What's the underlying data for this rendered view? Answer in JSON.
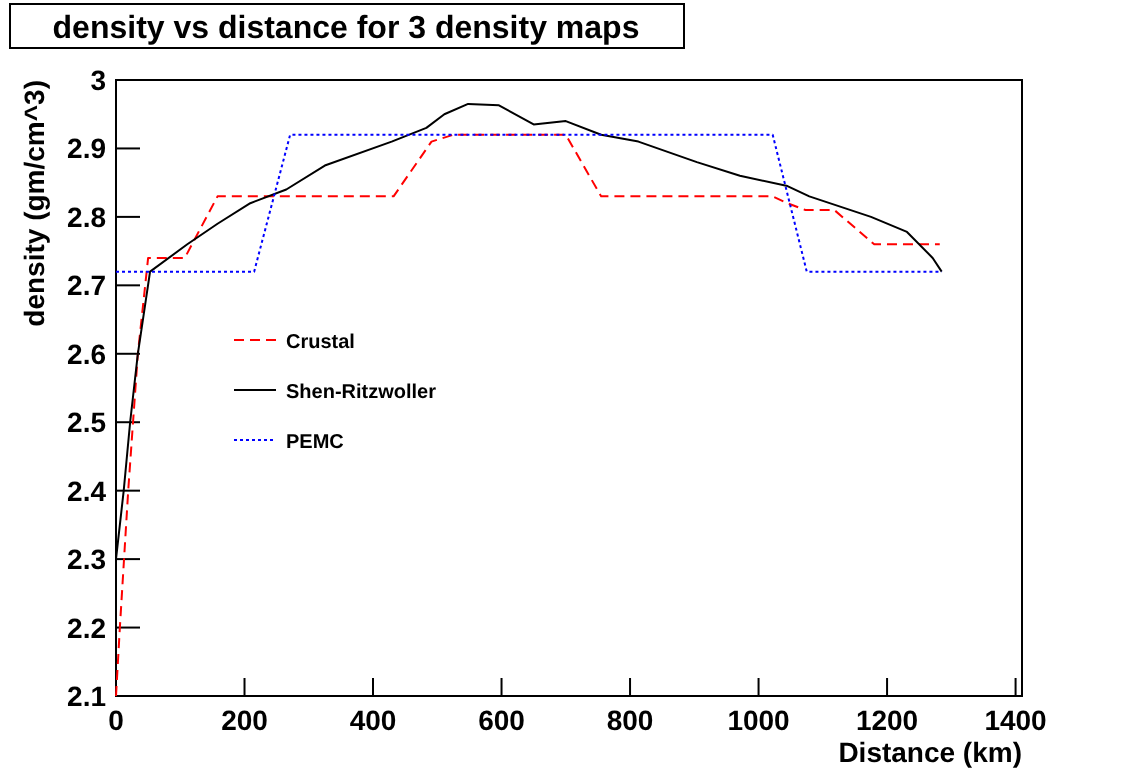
{
  "chart_data": {
    "type": "line",
    "title": "density vs distance for 3 density maps",
    "xlabel": "Distance (km)",
    "ylabel": "density (gm/cm^3)",
    "xlim": [
      0,
      1410
    ],
    "ylim": [
      2.1,
      3
    ],
    "xticks": [
      0,
      200,
      400,
      600,
      800,
      1000,
      1200,
      1400
    ],
    "yticks": [
      2.1,
      2.2,
      2.3,
      2.4,
      2.5,
      2.6,
      2.7,
      2.8,
      2.9,
      3
    ],
    "legend": "left",
    "grid": false,
    "series": [
      {
        "name": "Crustal",
        "color": "#ff0000",
        "line_style": "dashed",
        "x": [
          0,
          6,
          19,
          34,
          50,
          107,
          158,
          432,
          491,
          525,
          700,
          755,
          1022,
          1045,
          1073,
          1118,
          1180,
          1282
        ],
        "values": [
          2.1,
          2.2,
          2.4,
          2.6,
          2.74,
          2.74,
          2.83,
          2.83,
          2.91,
          2.92,
          2.92,
          2.83,
          2.83,
          2.82,
          2.81,
          2.81,
          2.76,
          2.76
        ]
      },
      {
        "name": "Shen-Ritzwoller",
        "color": "#000000",
        "line_style": "solid",
        "x": [
          0,
          12,
          22,
          34,
          53,
          111,
          158,
          209,
          265,
          325,
          429,
          483,
          511,
          548,
          596,
          650,
          700,
          755,
          813,
          904,
          971,
          1045,
          1079,
          1175,
          1231,
          1271,
          1285
        ],
        "values": [
          2.3,
          2.4,
          2.5,
          2.6,
          2.72,
          2.76,
          2.79,
          2.82,
          2.84,
          2.875,
          2.91,
          2.93,
          2.95,
          2.965,
          2.963,
          2.935,
          2.94,
          2.92,
          2.91,
          2.88,
          2.86,
          2.845,
          2.83,
          2.8,
          2.778,
          2.74,
          2.72
        ]
      },
      {
        "name": "PEMC",
        "color": "#0000ff",
        "line_style": "dotted",
        "x": [
          0,
          215,
          271,
          1022,
          1075,
          1285
        ],
        "values": [
          2.72,
          2.72,
          2.92,
          2.92,
          2.72,
          2.72
        ]
      }
    ]
  }
}
